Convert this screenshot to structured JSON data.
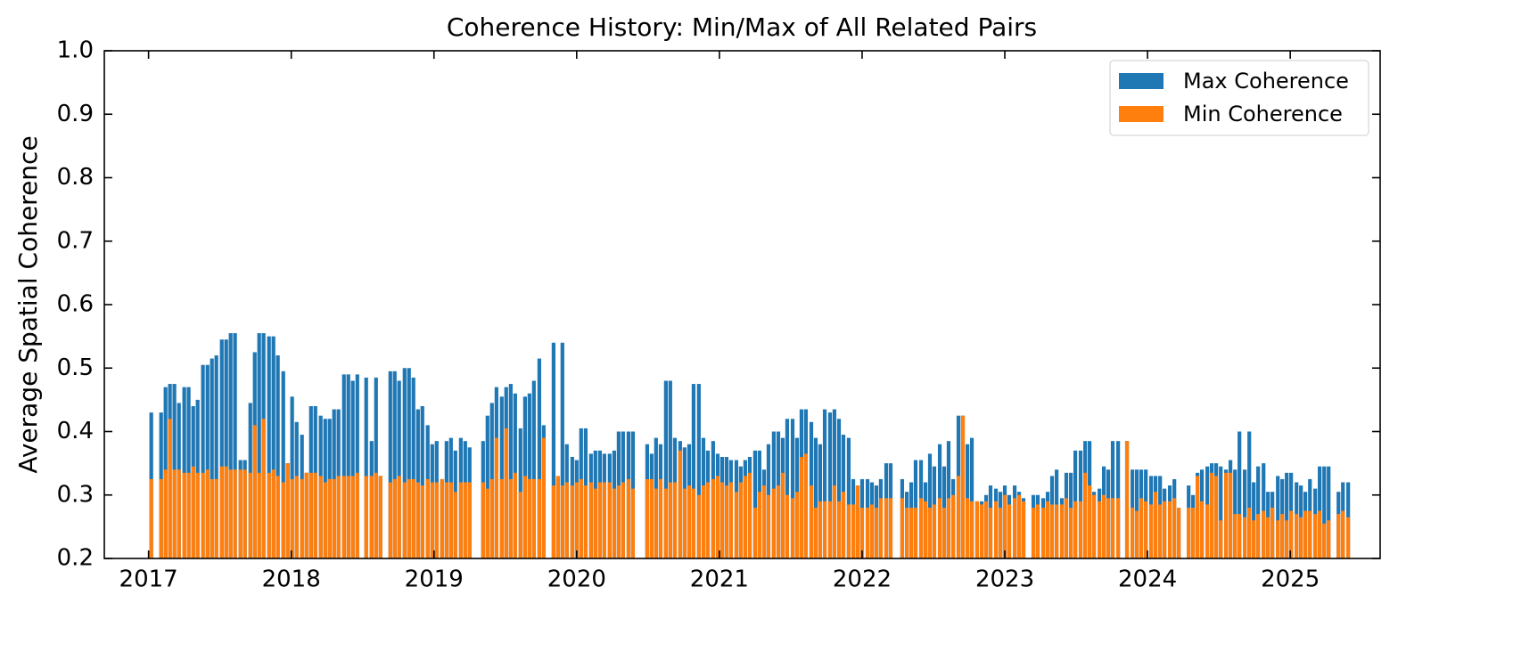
{
  "chart_data": {
    "type": "bar",
    "title": "Coherence History: Min/Max of All Related Pairs",
    "ylabel": "Average Spatial Coherence",
    "xlim": [
      2016.69,
      2025.63
    ],
    "xticks": [
      2017,
      2018,
      2019,
      2020,
      2021,
      2022,
      2023,
      2024,
      2025
    ],
    "ylim": [
      0.2,
      1
    ],
    "yticks": [
      0.2,
      0.3,
      0.4,
      0.5,
      0.6,
      0.7,
      0.8,
      0.9,
      {
        "value": 1,
        "label": "1.0"
      }
    ],
    "legend": "upper right",
    "grid": false,
    "x": [
      2017.019,
      2017.088,
      2017.119,
      2017.15,
      2017.181,
      2017.213,
      2017.25,
      2017.281,
      2017.313,
      2017.344,
      2017.381,
      2017.413,
      2017.444,
      2017.475,
      2017.513,
      2017.544,
      2017.575,
      2017.606,
      2017.644,
      2017.675,
      2017.713,
      2017.744,
      2017.775,
      2017.806,
      2017.844,
      2017.875,
      2017.906,
      2017.944,
      2017.975,
      2018.006,
      2018.038,
      2018.075,
      2018.106,
      2018.138,
      2018.169,
      2018.206,
      2018.238,
      2018.269,
      2018.3,
      2018.331,
      2018.369,
      2018.4,
      2018.431,
      2018.463,
      2018.525,
      2018.563,
      2018.594,
      2018.625,
      2018.694,
      2018.725,
      2018.756,
      2018.794,
      2018.825,
      2018.856,
      2018.888,
      2018.919,
      2018.956,
      2018.988,
      2019.019,
      2019.056,
      2019.088,
      2019.119,
      2019.15,
      2019.188,
      2019.219,
      2019.25,
      2019.344,
      2019.375,
      2019.406,
      2019.438,
      2019.475,
      2019.506,
      2019.538,
      2019.569,
      2019.606,
      2019.638,
      2019.669,
      2019.7,
      2019.738,
      2019.769,
      2019.838,
      2019.869,
      2019.9,
      2019.931,
      2019.969,
      2020.0,
      2020.031,
      2020.063,
      2020.1,
      2020.131,
      2020.163,
      2020.194,
      2020.231,
      2020.263,
      2020.294,
      2020.325,
      2020.363,
      2020.394,
      2020.494,
      2020.525,
      2020.556,
      2020.588,
      2020.625,
      2020.656,
      2020.688,
      2020.725,
      2020.756,
      2020.788,
      2020.819,
      2020.856,
      2020.888,
      2020.919,
      2020.956,
      2020.988,
      2021.019,
      2021.05,
      2021.081,
      2021.119,
      2021.15,
      2021.181,
      2021.213,
      2021.25,
      2021.281,
      2021.313,
      2021.344,
      2021.381,
      2021.413,
      2021.444,
      2021.475,
      2021.513,
      2021.544,
      2021.575,
      2021.606,
      2021.644,
      2021.675,
      2021.706,
      2021.738,
      2021.775,
      2021.806,
      2021.838,
      2021.869,
      2021.906,
      2021.938,
      2021.969,
      2022.0,
      2022.038,
      2022.069,
      2022.1,
      2022.131,
      2022.169,
      2022.2,
      2022.281,
      2022.313,
      2022.344,
      2022.375,
      2022.413,
      2022.444,
      2022.475,
      2022.506,
      2022.544,
      2022.575,
      2022.606,
      2022.638,
      2022.675,
      2022.706,
      2022.738,
      2022.769,
      2022.806,
      2022.838,
      2022.869,
      2022.9,
      2022.938,
      2022.969,
      2023.0,
      2023.031,
      2023.069,
      2023.1,
      2023.131,
      2023.2,
      2023.231,
      2023.269,
      2023.3,
      2023.331,
      2023.363,
      2023.4,
      2023.431,
      2023.463,
      2023.494,
      2023.531,
      2023.563,
      2023.594,
      2023.625,
      2023.663,
      2023.694,
      2023.725,
      2023.756,
      2023.794,
      2023.856,
      2023.894,
      2023.925,
      2023.956,
      2023.988,
      2024.025,
      2024.056,
      2024.088,
      2024.119,
      2024.156,
      2024.188,
      2024.219,
      2024.288,
      2024.319,
      2024.35,
      2024.381,
      2024.419,
      2024.45,
      2024.481,
      2024.513,
      2024.55,
      2024.581,
      2024.613,
      2024.644,
      2024.681,
      2024.713,
      2024.744,
      2024.775,
      2024.813,
      2024.844,
      2024.875,
      2024.913,
      2024.944,
      2024.975,
      2025.006,
      2025.044,
      2025.075,
      2025.106,
      2025.138,
      2025.175,
      2025.206,
      2025.238,
      2025.269,
      2025.338,
      2025.369,
      2025.406
    ],
    "series": [
      {
        "name": "Max Coherence",
        "color": "#1f77b4",
        "values": [
          0.43,
          0.43,
          0.47,
          0.475,
          0.475,
          0.445,
          0.47,
          0.47,
          0.44,
          0.45,
          0.505,
          0.505,
          0.515,
          0.52,
          0.545,
          0.545,
          0.555,
          0.555,
          0.355,
          0.355,
          0.445,
          0.525,
          0.555,
          0.555,
          0.55,
          0.55,
          0.52,
          0.495,
          0.35,
          0.455,
          0.415,
          0.395,
          0.335,
          0.44,
          0.44,
          0.425,
          0.42,
          0.42,
          0.435,
          0.435,
          0.49,
          0.49,
          0.48,
          0.49,
          0.485,
          0.385,
          0.485,
          0.33,
          0.495,
          0.495,
          0.48,
          0.5,
          0.5,
          0.485,
          0.435,
          0.44,
          0.41,
          0.38,
          0.385,
          0.325,
          0.385,
          0.39,
          0.37,
          0.39,
          0.385,
          0.375,
          0.385,
          0.425,
          0.445,
          0.47,
          0.455,
          0.47,
          0.475,
          0.46,
          0.405,
          0.455,
          0.46,
          0.48,
          0.515,
          0.41,
          0.54,
          0.325,
          0.54,
          0.38,
          0.36,
          0.355,
          0.405,
          0.405,
          0.365,
          0.37,
          0.37,
          0.365,
          0.365,
          0.37,
          0.4,
          0.4,
          0.4,
          0.4,
          0.38,
          0.365,
          0.39,
          0.38,
          0.48,
          0.48,
          0.39,
          0.385,
          0.375,
          0.38,
          0.475,
          0.475,
          0.39,
          0.37,
          0.385,
          0.365,
          0.36,
          0.36,
          0.355,
          0.355,
          0.345,
          0.355,
          0.36,
          0.37,
          0.37,
          0.34,
          0.38,
          0.4,
          0.4,
          0.39,
          0.42,
          0.42,
          0.39,
          0.435,
          0.435,
          0.415,
          0.39,
          0.38,
          0.435,
          0.43,
          0.435,
          0.42,
          0.395,
          0.39,
          0.325,
          0.315,
          0.325,
          0.325,
          0.32,
          0.315,
          0.325,
          0.35,
          0.35,
          0.325,
          0.305,
          0.32,
          0.355,
          0.355,
          0.32,
          0.365,
          0.345,
          0.38,
          0.345,
          0.385,
          0.325,
          0.425,
          0.425,
          0.38,
          0.39,
          0.29,
          0.29,
          0.3,
          0.315,
          0.31,
          0.305,
          0.315,
          0.3,
          0.315,
          0.305,
          0.295,
          0.3,
          0.3,
          0.295,
          0.305,
          0.33,
          0.34,
          0.295,
          0.335,
          0.335,
          0.37,
          0.37,
          0.385,
          0.385,
          0.305,
          0.31,
          0.345,
          0.34,
          0.385,
          0.385,
          0.385,
          0.34,
          0.34,
          0.34,
          0.34,
          0.33,
          0.33,
          0.33,
          0.31,
          0.315,
          0.325,
          0.275,
          0.315,
          0.3,
          0.335,
          0.34,
          0.345,
          0.35,
          0.35,
          0.345,
          0.34,
          0.355,
          0.34,
          0.4,
          0.34,
          0.4,
          0.32,
          0.345,
          0.35,
          0.305,
          0.305,
          0.33,
          0.325,
          0.335,
          0.335,
          0.32,
          0.315,
          0.305,
          0.325,
          0.31,
          0.345,
          0.345,
          0.345,
          0.305,
          0.32,
          0.32
        ]
      },
      {
        "name": "Min Coherence",
        "color": "#ff7f0e",
        "values": [
          0.325,
          0.325,
          0.34,
          0.42,
          0.34,
          0.34,
          0.335,
          0.335,
          0.345,
          0.335,
          0.335,
          0.34,
          0.325,
          0.325,
          0.345,
          0.345,
          0.34,
          0.34,
          0.34,
          0.34,
          0.335,
          0.41,
          0.335,
          0.42,
          0.335,
          0.34,
          0.33,
          0.32,
          0.35,
          0.325,
          0.33,
          0.325,
          0.335,
          0.335,
          0.335,
          0.33,
          0.32,
          0.325,
          0.325,
          0.33,
          0.33,
          0.33,
          0.33,
          0.335,
          0.33,
          0.33,
          0.335,
          0.33,
          0.32,
          0.325,
          0.33,
          0.32,
          0.325,
          0.325,
          0.32,
          0.315,
          0.325,
          0.32,
          0.32,
          0.325,
          0.32,
          0.32,
          0.305,
          0.32,
          0.32,
          0.32,
          0.32,
          0.31,
          0.325,
          0.39,
          0.325,
          0.405,
          0.325,
          0.335,
          0.305,
          0.33,
          0.325,
          0.325,
          0.325,
          0.39,
          0.315,
          0.33,
          0.315,
          0.32,
          0.315,
          0.32,
          0.325,
          0.315,
          0.32,
          0.31,
          0.32,
          0.32,
          0.32,
          0.31,
          0.315,
          0.32,
          0.325,
          0.31,
          0.325,
          0.325,
          0.31,
          0.325,
          0.31,
          0.32,
          0.32,
          0.37,
          0.31,
          0.315,
          0.31,
          0.3,
          0.315,
          0.32,
          0.325,
          0.33,
          0.32,
          0.315,
          0.32,
          0.305,
          0.32,
          0.33,
          0.335,
          0.28,
          0.305,
          0.315,
          0.3,
          0.31,
          0.315,
          0.335,
          0.3,
          0.295,
          0.305,
          0.36,
          0.365,
          0.315,
          0.28,
          0.29,
          0.29,
          0.29,
          0.315,
          0.29,
          0.305,
          0.285,
          0.285,
          0.315,
          0.28,
          0.28,
          0.285,
          0.28,
          0.295,
          0.295,
          0.295,
          0.295,
          0.28,
          0.28,
          0.28,
          0.295,
          0.29,
          0.28,
          0.285,
          0.295,
          0.28,
          0.295,
          0.3,
          0.33,
          0.425,
          0.295,
          0.29,
          0.29,
          0.285,
          0.29,
          0.28,
          0.29,
          0.28,
          0.3,
          0.285,
          0.295,
          0.3,
          0.29,
          0.28,
          0.285,
          0.28,
          0.29,
          0.285,
          0.285,
          0.285,
          0.295,
          0.28,
          0.29,
          0.29,
          0.335,
          0.315,
          0.3,
          0.29,
          0.3,
          0.295,
          0.295,
          0.295,
          0.385,
          0.28,
          0.275,
          0.295,
          0.29,
          0.285,
          0.305,
          0.285,
          0.29,
          0.29,
          0.295,
          0.28,
          0.28,
          0.28,
          0.33,
          0.29,
          0.285,
          0.335,
          0.33,
          0.26,
          0.335,
          0.335,
          0.27,
          0.27,
          0.265,
          0.28,
          0.26,
          0.27,
          0.275,
          0.265,
          0.28,
          0.26,
          0.27,
          0.26,
          0.275,
          0.27,
          0.265,
          0.275,
          0.275,
          0.27,
          0.275,
          0.255,
          0.26,
          0.27,
          0.275,
          0.265
        ]
      }
    ]
  }
}
